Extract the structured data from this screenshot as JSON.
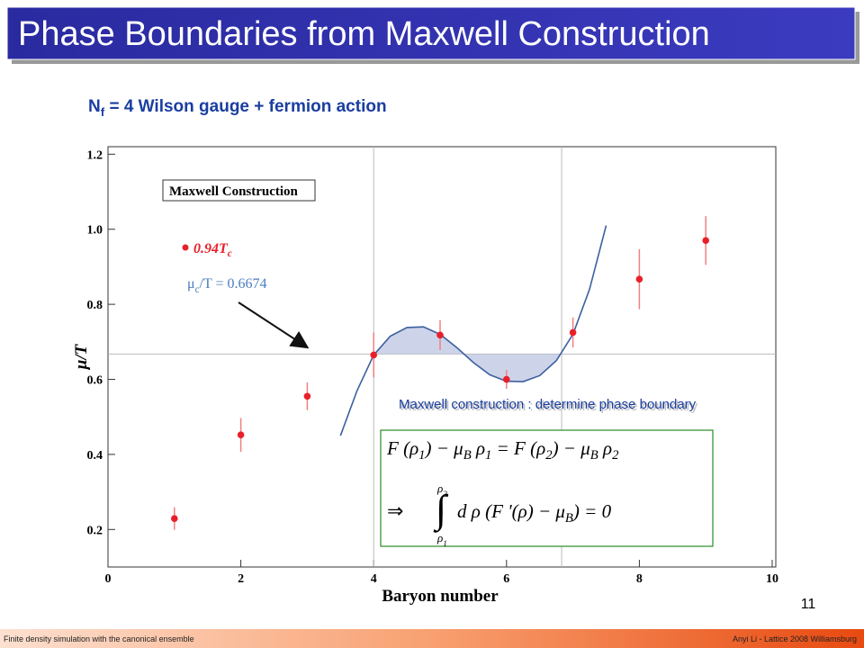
{
  "title": "Phase Boundaries from Maxwell Construction",
  "subtitle": [
    {
      "text": "N"
    },
    {
      "sub": "f"
    },
    {
      "text": " = 4 Wilson gauge + fermion action"
    }
  ],
  "chart_data": {
    "type": "scatter",
    "x_label": "Baryon number",
    "y_label": "μ/T",
    "xlim": [
      0,
      10
    ],
    "ylim": [
      0.1,
      1.22
    ],
    "xticks": [
      0,
      2,
      4,
      6,
      8,
      10
    ],
    "yticks": [
      0.2,
      0.4,
      0.6,
      0.8,
      {
        "value": 1,
        "label": "1.0"
      },
      1.2
    ],
    "legend_title": "Maxwell Construction",
    "series": [
      {
        "name": "0.94T",
        "name_subscript": "c",
        "color": "#e8202a",
        "x": [
          1,
          2,
          3,
          4,
          5,
          6,
          7,
          8,
          9
        ],
        "values": [
          0.229,
          0.452,
          0.555,
          0.665,
          0.718,
          0.6,
          0.725,
          0.867,
          0.97
        ],
        "errors": [
          0.03,
          0.045,
          0.037,
          0.06,
          0.04,
          0.025,
          0.04,
          0.08,
          0.065
        ]
      }
    ],
    "fit": {
      "color": "#3b5fa0",
      "x": [
        3.5,
        3.75,
        4,
        4.25,
        4.5,
        4.75,
        5,
        5.25,
        5.5,
        5.75,
        6,
        6.25,
        6.5,
        6.75,
        7,
        7.25,
        7.5
      ],
      "values": [
        0.45,
        0.57,
        0.665,
        0.715,
        0.738,
        0.74,
        0.72,
        0.685,
        0.645,
        0.612,
        0.595,
        0.594,
        0.61,
        0.65,
        0.72,
        0.84,
        1.01
      ]
    },
    "critical": {
      "label": [
        {
          "text": "μ"
        },
        {
          "sub": "c"
        },
        {
          "text": "/T = "
        }
      ],
      "value": 0.6674,
      "color": "#4a7cc0"
    },
    "boundaries": [
      4,
      6.83
    ],
    "annotation": "Maxwell construction : determine phase boundary"
  },
  "equations": {
    "first": [
      {
        "text": "F (ρ"
      },
      {
        "sub": "1"
      },
      {
        "text": ") − μ"
      },
      {
        "sub": "B"
      },
      {
        "text": " ρ"
      },
      {
        "sub": "1"
      },
      {
        "text": " = F (ρ"
      },
      {
        "sub": "2"
      },
      {
        "text": ") − μ"
      },
      {
        "sub": "B"
      },
      {
        "text": " ρ"
      },
      {
        "sub": "2"
      }
    ],
    "arrow": "⇒",
    "integral": "∫",
    "upper": [
      {
        "text": "ρ"
      },
      {
        "sub": "2"
      }
    ],
    "lower": [
      {
        "text": "ρ"
      },
      {
        "sub": "1"
      }
    ],
    "body": [
      {
        "text": "d ρ  (F '(ρ) − μ"
      },
      {
        "sub": "B"
      },
      {
        "text": ") = 0"
      }
    ]
  },
  "page_number": "11",
  "footer": {
    "left": "Finite density simulation with the canonical ensemble",
    "right": "Anyi Li - Lattice 2008 Williamsburg"
  }
}
